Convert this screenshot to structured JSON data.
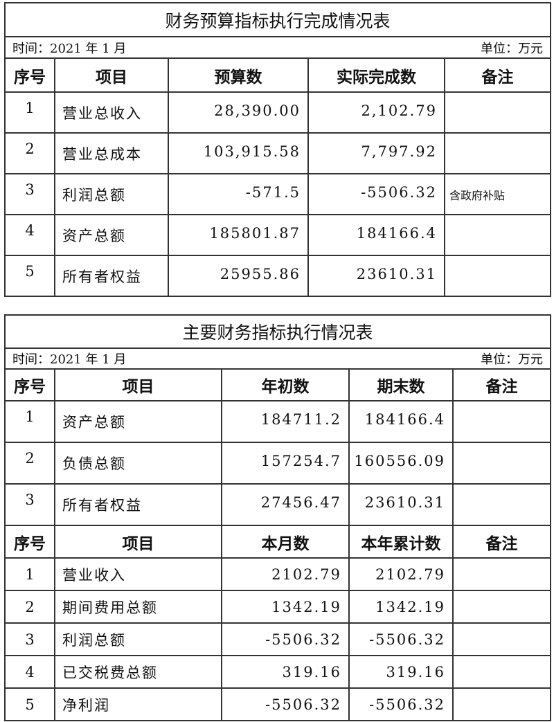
{
  "table1": {
    "title": "财务预算指标执行完成情况表",
    "time": "时间：2021 年 1 月",
    "unit": "单位：万元",
    "headers": [
      "序号",
      "项目",
      "预算数",
      "实际完成数",
      "备注"
    ],
    "rows": [
      {
        "no": "1",
        "item": "营业总收入",
        "budget": "28,390.00",
        "actual": "2,102.79",
        "note": ""
      },
      {
        "no": "2",
        "item": "营业总成本",
        "budget": "103,915.58",
        "actual": "7,797.92",
        "note": ""
      },
      {
        "no": "3",
        "item": "利润总额",
        "budget": "-571.5",
        "actual": "-5506.32",
        "note": "含政府补贴"
      },
      {
        "no": "4",
        "item": "资产总额",
        "budget": "185801.87",
        "actual": "184166.4",
        "note": ""
      },
      {
        "no": "5",
        "item": "所有者权益",
        "budget": "25955.86",
        "actual": "23610.31",
        "note": ""
      }
    ]
  },
  "table2": {
    "title": "主要财务指标执行情况表",
    "time": "时间：2021 年 1 月",
    "unit": "单位：万元",
    "headers_a": [
      "序号",
      "项目",
      "年初数",
      "期末数",
      "备注"
    ],
    "rows_a": [
      {
        "no": "1",
        "item": "资产总额",
        "v1": "184711.2",
        "v2": "184166.4",
        "note": ""
      },
      {
        "no": "2",
        "item": "负债总额",
        "v1": "157254.7",
        "v2": "160556.09",
        "note": ""
      },
      {
        "no": "3",
        "item": "所有者权益",
        "v1": "27456.47",
        "v2": "23610.31",
        "note": ""
      }
    ],
    "headers_b": [
      "序号",
      "项目",
      "本月数",
      "本年累计数",
      "备注"
    ],
    "rows_b": [
      {
        "no": "1",
        "item": "营业收入",
        "v1": "2102.79",
        "v2": "2102.79",
        "note": ""
      },
      {
        "no": "2",
        "item": "期间费用总额",
        "v1": "1342.19",
        "v2": "1342.19",
        "note": ""
      },
      {
        "no": "3",
        "item": "利润总额",
        "v1": "-5506.32",
        "v2": "-5506.32",
        "note": ""
      },
      {
        "no": "4",
        "item": "已交税费总额",
        "v1": "319.16",
        "v2": "319.16",
        "note": ""
      },
      {
        "no": "5",
        "item": "净利润",
        "v1": "-5506.32",
        "v2": "-5506.32",
        "note": ""
      }
    ]
  }
}
